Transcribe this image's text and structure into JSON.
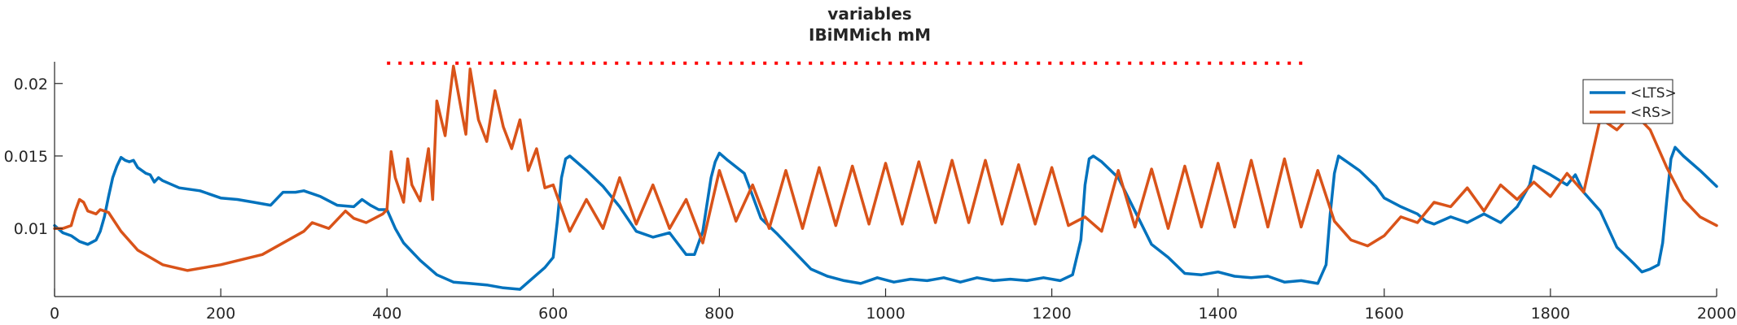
{
  "chart_data": {
    "type": "line",
    "title": "variables",
    "subtitle": "IBiMMich mM",
    "xlabel": "",
    "ylabel": "",
    "xlim": [
      0,
      2000
    ],
    "ylim": [
      0.0053,
      0.0215
    ],
    "x_ticks": [
      0,
      200,
      400,
      600,
      800,
      1000,
      1200,
      1400,
      1600,
      1800,
      2000
    ],
    "x_tick_labels": [
      "0",
      "200",
      "400",
      "600",
      "800",
      "1000",
      "1200",
      "1400",
      "1600",
      "1800",
      "2000"
    ],
    "y_ticks": [
      0.01,
      0.015,
      0.02
    ],
    "y_tick_labels": [
      "0.01",
      "0.015",
      "0.02"
    ],
    "grid": false,
    "legend_position": "top-right",
    "series": [
      {
        "name": "<LTS>",
        "color": "#0072BD",
        "x": [
          0,
          10,
          20,
          30,
          40,
          50,
          55,
          60,
          65,
          70,
          75,
          80,
          85,
          90,
          95,
          100,
          105,
          110,
          115,
          120,
          125,
          130,
          150,
          175,
          200,
          220,
          240,
          260,
          275,
          290,
          300,
          320,
          340,
          360,
          370,
          380,
          390,
          400,
          410,
          420,
          440,
          460,
          480,
          500,
          520,
          540,
          560,
          580,
          590,
          600,
          605,
          610,
          615,
          620,
          640,
          660,
          680,
          700,
          720,
          740,
          760,
          770,
          780,
          790,
          795,
          800,
          810,
          830,
          850,
          870,
          890,
          910,
          930,
          950,
          970,
          990,
          1010,
          1030,
          1050,
          1070,
          1090,
          1110,
          1130,
          1150,
          1170,
          1190,
          1210,
          1225,
          1235,
          1240,
          1245,
          1250,
          1260,
          1280,
          1300,
          1320,
          1340,
          1360,
          1380,
          1400,
          1420,
          1440,
          1460,
          1480,
          1500,
          1520,
          1530,
          1535,
          1540,
          1545,
          1550,
          1570,
          1590,
          1600,
          1620,
          1640,
          1650,
          1660,
          1680,
          1700,
          1720,
          1740,
          1760,
          1775,
          1780,
          1800,
          1820,
          1830,
          1840,
          1860,
          1880,
          1900,
          1910,
          1920,
          1930,
          1935,
          1940,
          1945,
          1950,
          1960,
          1980,
          2000
        ],
        "y": [
          0.0102,
          0.0097,
          0.0095,
          0.0091,
          0.0089,
          0.0092,
          0.0098,
          0.0108,
          0.0122,
          0.0135,
          0.0143,
          0.0149,
          0.0147,
          0.0146,
          0.0147,
          0.0142,
          0.014,
          0.0138,
          0.0137,
          0.0132,
          0.0135,
          0.0133,
          0.0128,
          0.0126,
          0.0121,
          0.012,
          0.0118,
          0.0116,
          0.0125,
          0.0125,
          0.0126,
          0.0122,
          0.0116,
          0.0115,
          0.012,
          0.0116,
          0.0113,
          0.0113,
          0.01,
          0.009,
          0.0078,
          0.0068,
          0.0063,
          0.0062,
          0.0061,
          0.0059,
          0.0058,
          0.0068,
          0.0073,
          0.008,
          0.0105,
          0.0135,
          0.0148,
          0.015,
          0.014,
          0.0129,
          0.0115,
          0.0098,
          0.0094,
          0.0097,
          0.0082,
          0.0082,
          0.0098,
          0.0135,
          0.0146,
          0.0152,
          0.0147,
          0.0138,
          0.0107,
          0.0096,
          0.0084,
          0.0072,
          0.0067,
          0.0064,
          0.0062,
          0.0066,
          0.0063,
          0.0065,
          0.0064,
          0.0066,
          0.0063,
          0.0066,
          0.0064,
          0.0065,
          0.0064,
          0.0066,
          0.0064,
          0.0068,
          0.0092,
          0.013,
          0.0148,
          0.015,
          0.0146,
          0.0135,
          0.0112,
          0.0089,
          0.008,
          0.0069,
          0.0068,
          0.007,
          0.0067,
          0.0066,
          0.0067,
          0.0063,
          0.0064,
          0.0062,
          0.0075,
          0.011,
          0.0138,
          0.015,
          0.0148,
          0.014,
          0.0129,
          0.0121,
          0.0115,
          0.011,
          0.0105,
          0.0103,
          0.0108,
          0.0104,
          0.011,
          0.0104,
          0.0115,
          0.013,
          0.0143,
          0.0137,
          0.013,
          0.0137,
          0.0125,
          0.0112,
          0.0087,
          0.0076,
          0.007,
          0.0072,
          0.0075,
          0.009,
          0.012,
          0.0148,
          0.0156,
          0.015,
          0.014,
          0.0129
        ]
      },
      {
        "name": "<RS>",
        "color": "#D95319",
        "x": [
          0,
          10,
          20,
          25,
          30,
          35,
          40,
          50,
          55,
          60,
          65,
          80,
          100,
          130,
          160,
          200,
          250,
          300,
          310,
          330,
          350,
          360,
          375,
          395,
          400,
          405,
          410,
          420,
          425,
          430,
          440,
          450,
          455,
          460,
          470,
          480,
          490,
          495,
          500,
          510,
          520,
          530,
          540,
          550,
          560,
          570,
          580,
          590,
          600,
          610,
          620,
          640,
          660,
          680,
          700,
          720,
          740,
          760,
          780,
          800,
          820,
          840,
          860,
          880,
          900,
          920,
          940,
          960,
          980,
          1000,
          1020,
          1040,
          1060,
          1080,
          1100,
          1120,
          1140,
          1160,
          1180,
          1200,
          1220,
          1240,
          1260,
          1280,
          1300,
          1320,
          1340,
          1360,
          1380,
          1400,
          1420,
          1440,
          1460,
          1480,
          1500,
          1520,
          1540,
          1560,
          1580,
          1600,
          1620,
          1640,
          1660,
          1680,
          1700,
          1720,
          1740,
          1760,
          1780,
          1800,
          1820,
          1840,
          1860,
          1880,
          1900,
          1920,
          1940,
          1960,
          1980,
          2000
        ],
        "y": [
          0.01,
          0.01,
          0.0102,
          0.0112,
          0.012,
          0.0118,
          0.0112,
          0.011,
          0.0113,
          0.0112,
          0.0111,
          0.0098,
          0.0085,
          0.0075,
          0.0071,
          0.0075,
          0.0082,
          0.0098,
          0.0104,
          0.01,
          0.0112,
          0.0107,
          0.0104,
          0.011,
          0.0113,
          0.0153,
          0.0135,
          0.0118,
          0.0148,
          0.013,
          0.0119,
          0.0155,
          0.012,
          0.0188,
          0.0164,
          0.0212,
          0.018,
          0.0165,
          0.021,
          0.0175,
          0.016,
          0.0195,
          0.017,
          0.0155,
          0.0175,
          0.014,
          0.0155,
          0.0128,
          0.013,
          0.0114,
          0.0098,
          0.012,
          0.01,
          0.0135,
          0.0103,
          0.013,
          0.01,
          0.012,
          0.009,
          0.014,
          0.0105,
          0.013,
          0.01,
          0.014,
          0.01,
          0.0142,
          0.0102,
          0.0143,
          0.0103,
          0.0145,
          0.0103,
          0.0146,
          0.0104,
          0.0147,
          0.0104,
          0.0147,
          0.0103,
          0.0144,
          0.0103,
          0.0142,
          0.0102,
          0.0108,
          0.0098,
          0.014,
          0.0101,
          0.0141,
          0.01,
          0.0143,
          0.0101,
          0.0145,
          0.0101,
          0.0147,
          0.0101,
          0.0148,
          0.0101,
          0.014,
          0.0105,
          0.0092,
          0.0088,
          0.0095,
          0.0108,
          0.0104,
          0.0118,
          0.0115,
          0.0128,
          0.0112,
          0.013,
          0.012,
          0.0132,
          0.0122,
          0.0138,
          0.0125,
          0.0176,
          0.0168,
          0.018,
          0.0168,
          0.0142,
          0.012,
          0.0108,
          0.0102
        ]
      },
      {
        "name": "",
        "color": "#FF0000",
        "style": "dotted",
        "x": [
          400,
          1505
        ],
        "y": [
          0.0214,
          0.0214
        ]
      }
    ]
  }
}
